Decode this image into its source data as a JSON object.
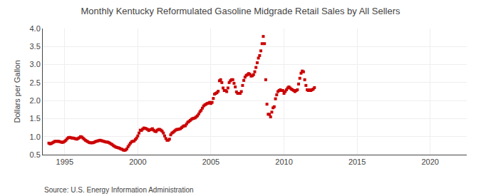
{
  "chart_data": {
    "type": "scatter",
    "title": "Monthly Kentucky Reformulated Gasoline Midgrade Retail Sales by All Sellers",
    "ylabel": "Dollars per Gallon",
    "annotations": [
      "Source: U.S. Energy Information Administration"
    ],
    "color": "#cc0000",
    "marker": "square",
    "grid": true,
    "xlim": [
      1993.5,
      2022.5
    ],
    "ylim": [
      0.5,
      4.0
    ],
    "xticks": [
      1995,
      2000,
      2005,
      2010,
      2015,
      2020
    ],
    "yticks": [
      0.5,
      {
        "value": 1.0,
        "label": "1.0"
      },
      1.5,
      {
        "value": 2.0,
        "label": "2.0"
      },
      2.5,
      {
        "value": 3.0,
        "label": "3.0"
      },
      3.5,
      {
        "value": 4.0,
        "label": "4.0"
      }
    ],
    "x": [
      1993.917,
      1994.0,
      1994.083,
      1994.167,
      1994.25,
      1994.333,
      1994.417,
      1994.5,
      1994.583,
      1994.667,
      1994.75,
      1994.833,
      1994.917,
      1995.0,
      1995.083,
      1995.167,
      1995.25,
      1995.333,
      1995.417,
      1995.5,
      1995.583,
      1995.667,
      1995.75,
      1995.833,
      1995.917,
      1996.0,
      1996.083,
      1996.167,
      1996.25,
      1996.333,
      1996.417,
      1996.5,
      1996.583,
      1996.667,
      1996.75,
      1996.833,
      1996.917,
      1997.0,
      1997.083,
      1997.167,
      1997.25,
      1997.333,
      1997.417,
      1997.5,
      1997.583,
      1997.667,
      1997.75,
      1997.833,
      1997.917,
      1998.0,
      1998.083,
      1998.167,
      1998.25,
      1998.333,
      1998.417,
      1998.5,
      1998.583,
      1998.667,
      1998.75,
      1998.833,
      1998.917,
      1999.0,
      1999.083,
      1999.167,
      1999.25,
      1999.333,
      1999.417,
      1999.5,
      1999.583,
      1999.667,
      1999.75,
      1999.833,
      1999.917,
      2000.0,
      2000.083,
      2000.167,
      2000.25,
      2000.333,
      2000.417,
      2000.5,
      2000.583,
      2000.667,
      2000.75,
      2000.833,
      2000.917,
      2001.0,
      2001.083,
      2001.167,
      2001.25,
      2001.333,
      2001.417,
      2001.5,
      2001.583,
      2001.667,
      2001.75,
      2001.833,
      2001.917,
      2002.0,
      2002.083,
      2002.167,
      2002.25,
      2002.333,
      2002.417,
      2002.5,
      2002.583,
      2002.667,
      2002.75,
      2002.833,
      2002.917,
      2003.0,
      2003.083,
      2003.167,
      2003.25,
      2003.333,
      2003.417,
      2003.5,
      2003.583,
      2003.667,
      2003.75,
      2003.833,
      2003.917,
      2004.0,
      2004.083,
      2004.167,
      2004.25,
      2004.333,
      2004.417,
      2004.5,
      2004.583,
      2004.667,
      2004.75,
      2004.833,
      2004.917,
      2005.0,
      2005.083,
      2005.167,
      2005.25,
      2005.333,
      2005.417,
      2005.5,
      2005.583,
      2005.667,
      2005.75,
      2005.833,
      2005.917,
      2006.0,
      2006.083,
      2006.167,
      2006.25,
      2006.333,
      2006.417,
      2006.5,
      2006.583,
      2006.667,
      2006.75,
      2006.833,
      2006.917,
      2007.0,
      2007.083,
      2007.167,
      2007.25,
      2007.333,
      2007.417,
      2007.5,
      2007.583,
      2007.667,
      2007.75,
      2007.833,
      2007.917,
      2008.0,
      2008.083,
      2008.167,
      2008.25,
      2008.333,
      2008.417,
      2008.5,
      2008.583,
      2008.667,
      2008.75,
      2008.833,
      2008.917,
      2009.0,
      2009.083,
      2009.167,
      2009.25,
      2009.333,
      2009.417,
      2009.5,
      2009.583,
      2009.667,
      2009.75,
      2009.833,
      2009.917,
      2010.0,
      2010.083,
      2010.167,
      2010.25,
      2010.333,
      2010.417,
      2010.5,
      2010.583,
      2010.667,
      2010.75,
      2010.833,
      2010.917,
      2011.0,
      2011.083,
      2011.167,
      2011.25,
      2011.333,
      2011.417,
      2011.5,
      2011.583,
      2011.667,
      2011.75,
      2011.833,
      2011.917,
      2012.0,
      2012.083
    ],
    "values": [
      0.82,
      0.8,
      0.81,
      0.83,
      0.85,
      0.87,
      0.87,
      0.87,
      0.87,
      0.86,
      0.85,
      0.84,
      0.85,
      0.87,
      0.9,
      0.94,
      0.97,
      0.98,
      0.97,
      0.96,
      0.96,
      0.95,
      0.94,
      0.93,
      0.95,
      0.97,
      1.0,
      0.99,
      0.96,
      0.93,
      0.9,
      0.88,
      0.86,
      0.84,
      0.83,
      0.83,
      0.83,
      0.84,
      0.86,
      0.87,
      0.88,
      0.89,
      0.9,
      0.89,
      0.88,
      0.87,
      0.86,
      0.85,
      0.85,
      0.84,
      0.82,
      0.8,
      0.78,
      0.75,
      0.73,
      0.71,
      0.7,
      0.69,
      0.68,
      0.66,
      0.65,
      0.63,
      0.62,
      0.63,
      0.66,
      0.72,
      0.77,
      0.82,
      0.86,
      0.87,
      0.88,
      0.92,
      0.96,
      1.02,
      1.1,
      1.18,
      1.17,
      1.21,
      1.24,
      1.23,
      1.22,
      1.2,
      1.17,
      1.19,
      1.2,
      1.22,
      1.18,
      1.15,
      1.14,
      1.18,
      1.2,
      1.2,
      1.18,
      1.15,
      1.1,
      1.02,
      0.95,
      0.9,
      0.9,
      0.93,
      1.05,
      1.1,
      1.12,
      1.15,
      1.18,
      1.2,
      1.2,
      1.21,
      1.22,
      1.25,
      1.28,
      1.3,
      1.3,
      1.35,
      1.4,
      1.42,
      1.45,
      1.48,
      1.5,
      1.51,
      1.52,
      1.55,
      1.58,
      1.63,
      1.69,
      1.73,
      1.79,
      1.85,
      1.88,
      1.9,
      1.92,
      1.93,
      1.95,
      1.92,
      1.95,
      2.06,
      2.18,
      2.2,
      2.22,
      2.26,
      2.55,
      2.58,
      2.5,
      2.35,
      2.28,
      2.28,
      2.25,
      2.35,
      2.5,
      2.55,
      2.58,
      2.58,
      2.48,
      2.38,
      2.24,
      2.2,
      2.2,
      2.2,
      2.25,
      2.42,
      2.56,
      2.65,
      2.7,
      2.72,
      2.75,
      2.73,
      2.68,
      2.69,
      2.72,
      2.8,
      2.92,
      3.05,
      3.18,
      3.25,
      3.38,
      3.58,
      3.78,
      3.58,
      2.58,
      1.9,
      1.62,
      1.62,
      1.55,
      1.68,
      1.8,
      1.83,
      2.05,
      2.16,
      2.25,
      2.28,
      2.3,
      2.28,
      2.28,
      2.2,
      2.25,
      2.3,
      2.35,
      2.38,
      2.35,
      2.32,
      2.3,
      2.28,
      2.25,
      2.28,
      2.3,
      2.46,
      2.62,
      2.76,
      2.82,
      2.8,
      2.58,
      2.42,
      2.3,
      2.28,
      2.3,
      2.28,
      2.3,
      2.32,
      2.36
    ]
  }
}
